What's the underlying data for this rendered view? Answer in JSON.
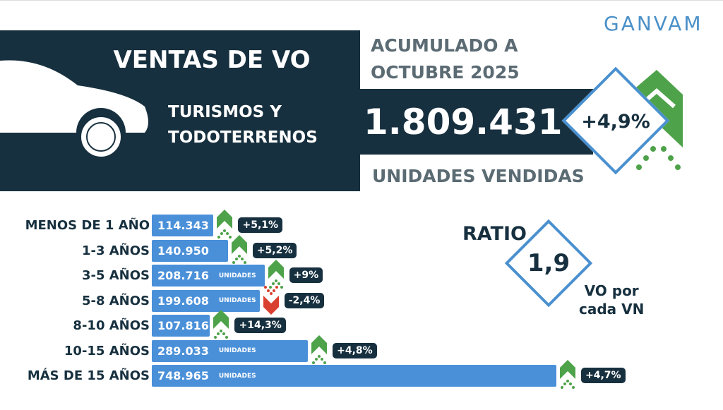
{
  "logo": "GANVAM",
  "header": {
    "title": "VENTAS DE VO",
    "accum_line1": "ACUMULADO A",
    "accum_line2": "OCTUBRE 2025",
    "segment_line1": "TURISMOS Y",
    "segment_line2": "TODOTERRENOS",
    "total": "1.809.431",
    "total_change": "+4,9%",
    "units_label": "UNIDADES VENDIDAS"
  },
  "ratio": {
    "label": "RATIO",
    "value": "1,9",
    "desc_line1": "VO por",
    "desc_line2": "cada VN"
  },
  "colors": {
    "navy": "#17303f",
    "bar": "#4a90d9",
    "up": "#4ea24a",
    "down": "#d9402f"
  },
  "chart_data": {
    "type": "bar",
    "orientation": "horizontal",
    "categories": [
      "MENOS DE 1 AÑO",
      "1-3 AÑOS",
      "3-5 AÑOS",
      "5-8 AÑOS",
      "8-10 AÑOS",
      "10-15 AÑOS",
      "MÁS DE 15 AÑOS"
    ],
    "values": [
      114343,
      140950,
      208716,
      199608,
      107816,
      289033,
      748965
    ],
    "value_labels": [
      "114.343",
      "140.950",
      "208.716",
      "199.608",
      "107.816",
      "289.033",
      "748.965"
    ],
    "unit_label": "UNIDADES",
    "show_unit": [
      false,
      false,
      true,
      true,
      false,
      true,
      true
    ],
    "changes": [
      "+5,1%",
      "+5,2%",
      "+9%",
      "-2,4%",
      "+14,3%",
      "+4,8%",
      "+4,7%"
    ],
    "trend": [
      "up",
      "up",
      "up",
      "down",
      "up",
      "up",
      "up"
    ]
  }
}
